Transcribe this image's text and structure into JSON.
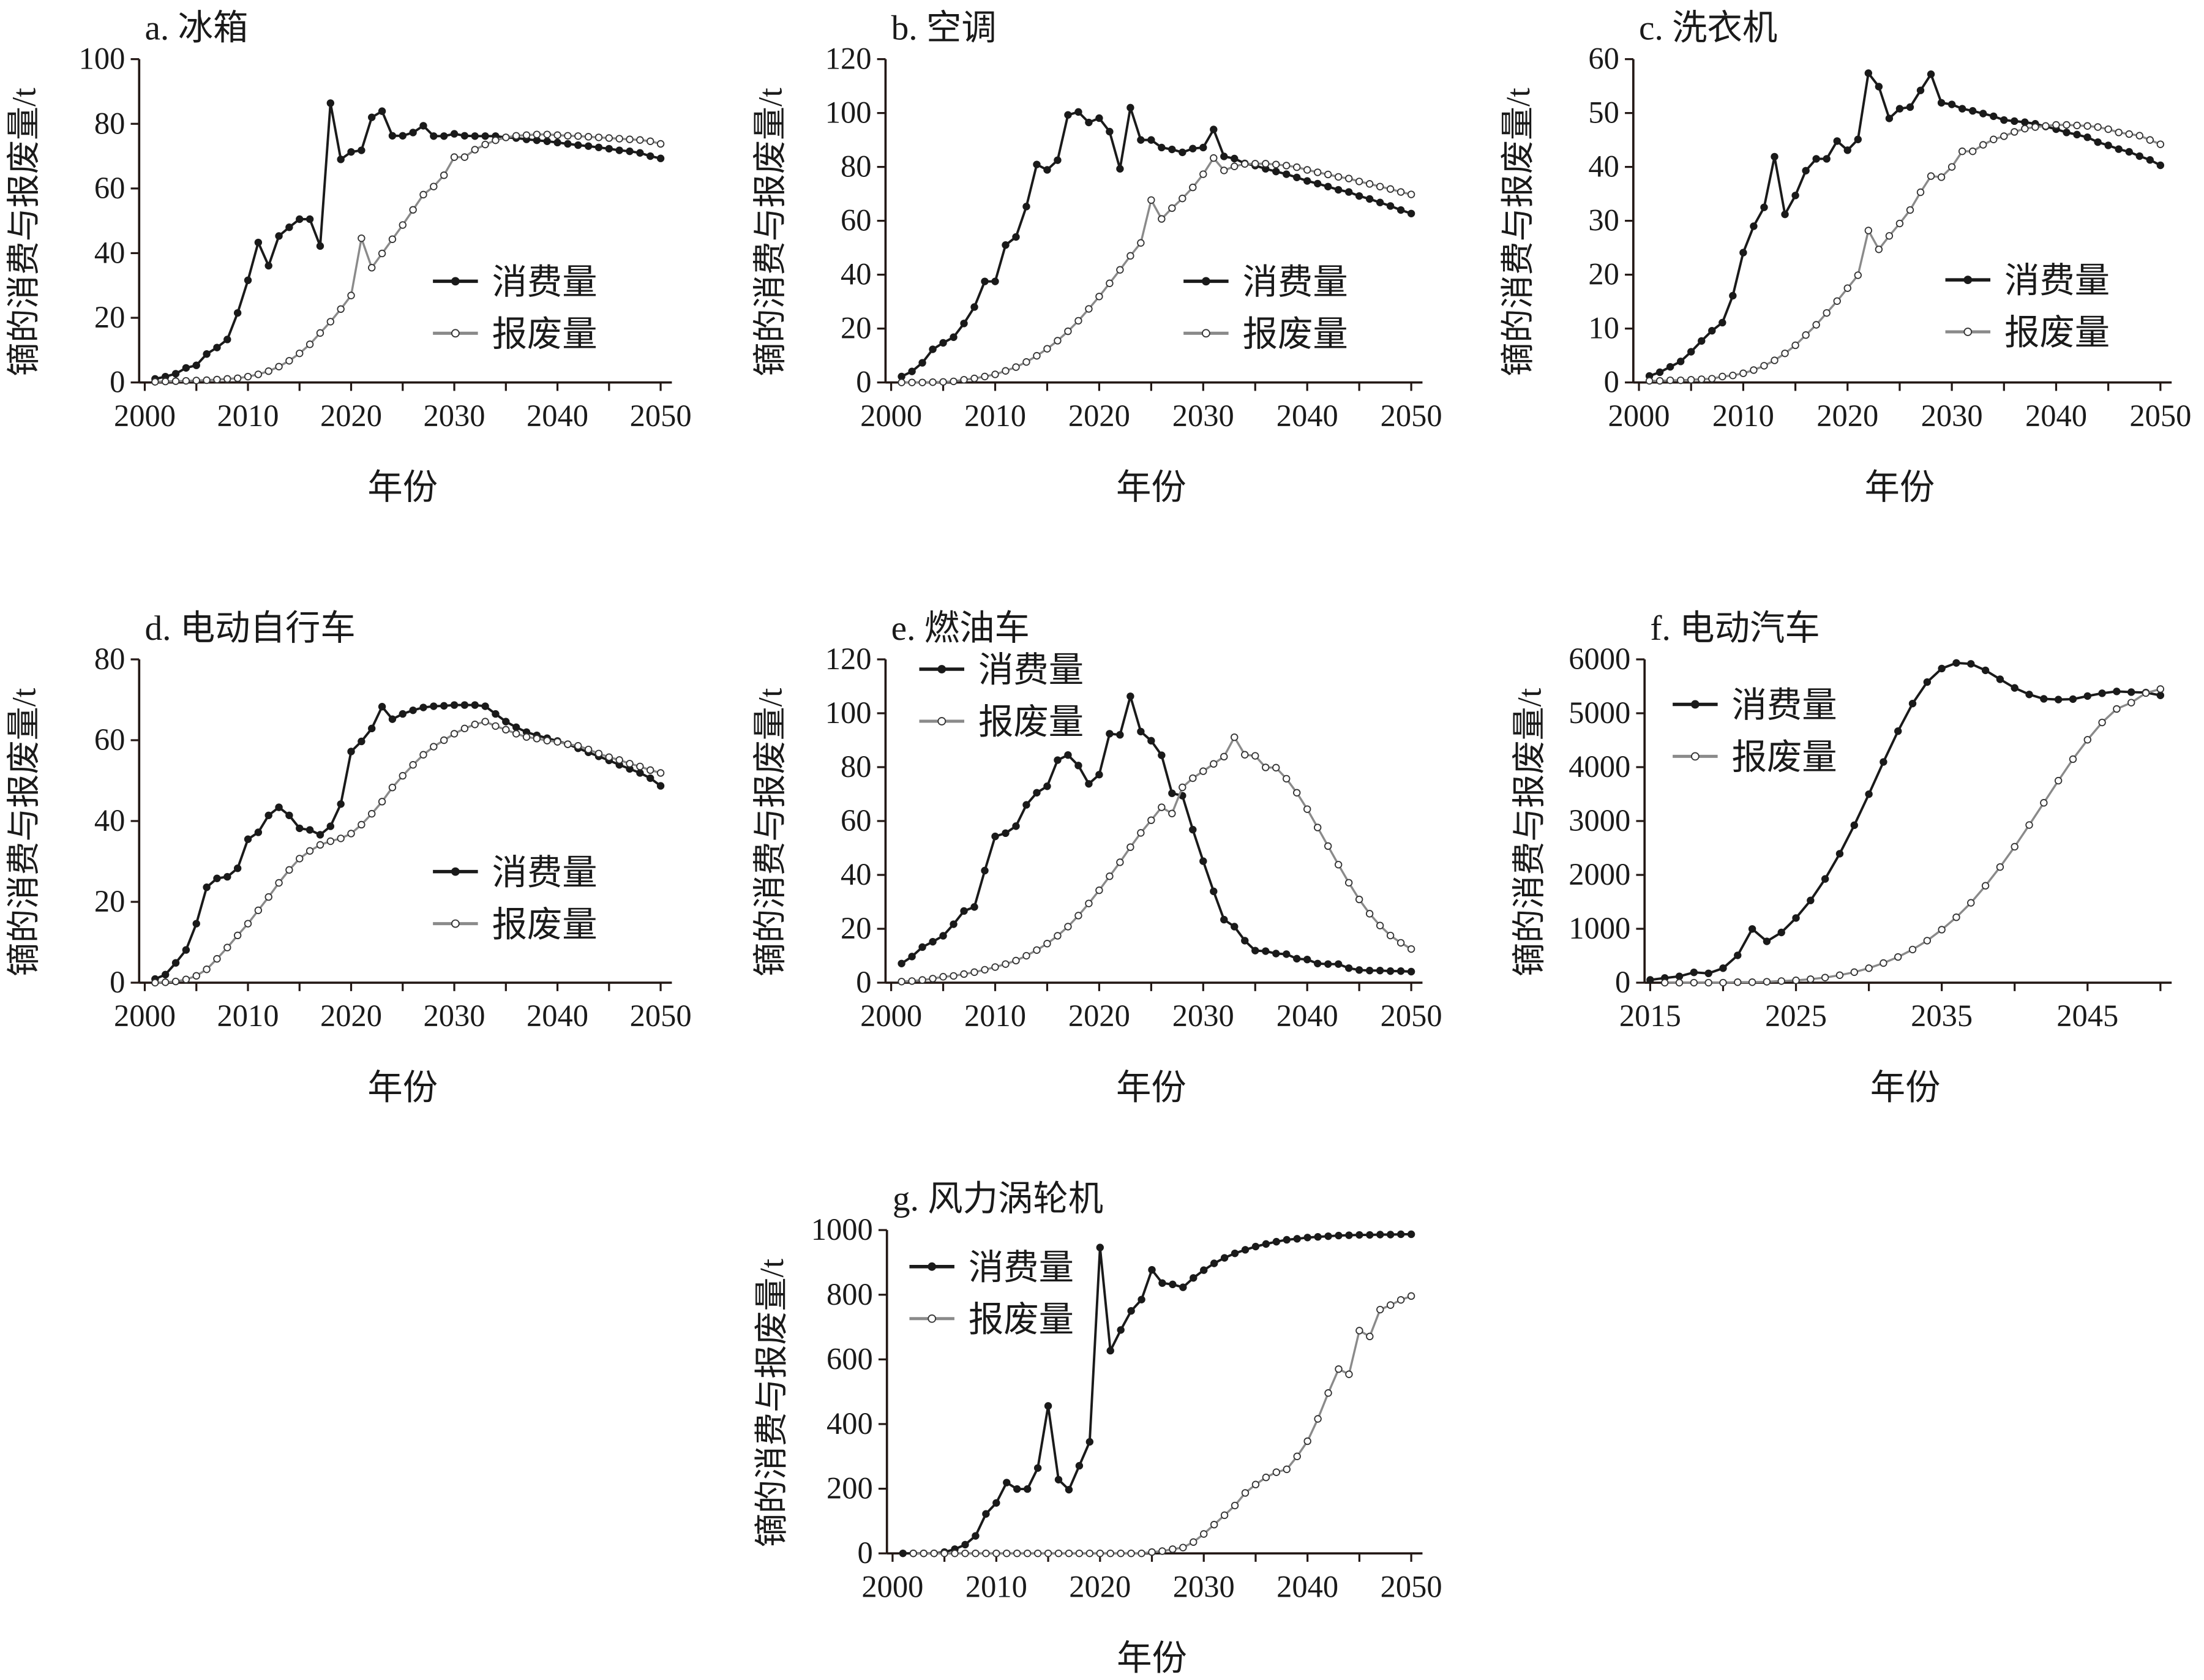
{
  "colors": {
    "consumption": "#1a1a1a",
    "scrap": "#8a8a8a",
    "axis": "#231815"
  },
  "chart_data": [
    {
      "id": "a",
      "type": "line",
      "title": "a. 冰箱",
      "xlabel": "年份",
      "ylabel": "镝的消费与报废量/t",
      "xlim": [
        2000,
        2050
      ],
      "ylim": [
        0,
        100
      ],
      "yticks": [
        0,
        20,
        40,
        60,
        80,
        100
      ],
      "xticks": [
        2000,
        2005,
        2010,
        2015,
        2020,
        2025,
        2030,
        2035,
        2040,
        2045,
        2050
      ],
      "xtick_labels": [
        2000,
        2010,
        2020,
        2030,
        2040,
        2050
      ],
      "legend": "right-middle",
      "series": [
        {
          "name": "消费量",
          "start": 2001,
          "values": [
            1.1,
            1.8,
            2.7,
            4.5,
            5.3,
            8.8,
            10.8,
            13.3,
            21.5,
            31.6,
            43.3,
            36.1,
            45.3,
            48,
            50.5,
            50.5,
            42.2,
            86.4,
            69,
            71.3,
            71.8,
            82,
            83.9,
            76.3,
            76.3,
            77.3,
            79.4,
            76.2,
            76.2,
            76.9,
            76.3,
            76.2,
            76.2,
            76.2,
            75.8,
            75.6,
            75.2,
            74.9,
            74.6,
            74.2,
            73.8,
            73.4,
            73.1,
            72.7,
            72.3,
            71.8,
            71.5,
            71,
            70,
            69.3
          ]
        },
        {
          "name": "报废量",
          "start": 2001,
          "values": [
            0.2,
            0.3,
            0.4,
            0.5,
            0.6,
            0.7,
            0.9,
            1.1,
            1.3,
            1.8,
            2.5,
            3.5,
            4.9,
            6.7,
            9,
            11.8,
            15.3,
            18.8,
            22.7,
            26.9,
            44.6,
            35.5,
            39.9,
            44.3,
            48.7,
            53.4,
            58.1,
            60.6,
            64.1,
            69.7,
            69.7,
            72,
            73.6,
            74.9,
            75.8,
            76.3,
            76.5,
            76.7,
            76.7,
            76.5,
            76.3,
            76.2,
            76,
            75.8,
            75.6,
            75.4,
            75.2,
            75,
            74.6,
            73.8
          ]
        }
      ]
    },
    {
      "id": "b",
      "type": "line",
      "title": "b. 空调",
      "xlabel": "年份",
      "ylabel": "镝的消费与报废量/t",
      "xlim": [
        2000,
        2050
      ],
      "ylim": [
        0,
        120
      ],
      "yticks": [
        0,
        20,
        40,
        60,
        80,
        100,
        120
      ],
      "xticks": [
        2000,
        2005,
        2010,
        2015,
        2020,
        2025,
        2030,
        2035,
        2040,
        2045,
        2050
      ],
      "xtick_labels": [
        2000,
        2010,
        2020,
        2030,
        2040,
        2050
      ],
      "legend": "right-middle",
      "series": [
        {
          "name": "消费量",
          "start": 2001,
          "values": [
            2.2,
            4.1,
            7.3,
            12.3,
            14.7,
            16.8,
            21.9,
            28,
            37.5,
            37.5,
            51,
            54,
            65.3,
            80.9,
            78.9,
            82.5,
            99.3,
            100.4,
            96.5,
            98.1,
            93.1,
            79.3,
            102,
            90,
            90,
            87.2,
            86.5,
            85.4,
            86.8,
            87.2,
            93.9,
            83.9,
            83.1,
            81.3,
            80.5,
            79.3,
            78.3,
            77.3,
            76.1,
            74.8,
            73.8,
            72.7,
            71.5,
            70.7,
            69.2,
            68.1,
            66.8,
            65.5,
            64,
            62.7
          ]
        },
        {
          "name": "报废量",
          "start": 2001,
          "values": [
            0,
            0,
            0,
            0.1,
            0.2,
            0.4,
            1,
            1.5,
            2.2,
            3,
            4.3,
            5.7,
            7.6,
            9.9,
            12.5,
            15.5,
            19,
            22.9,
            27.3,
            31.9,
            36.8,
            41.8,
            47,
            51.8,
            67.7,
            60.7,
            64.7,
            68.3,
            72.4,
            77.3,
            83.3,
            78.7,
            80.2,
            81.1,
            81.2,
            81.2,
            80.9,
            80.5,
            79.9,
            78.9,
            78,
            77.2,
            76.3,
            75.7,
            74.6,
            73.7,
            72.7,
            71.8,
            70.7,
            69.8
          ]
        }
      ]
    },
    {
      "id": "c",
      "type": "line",
      "title": "c. 洗衣机",
      "xlabel": "年份",
      "ylabel": "镝的消费与报废量/t",
      "xlim": [
        2000,
        2050
      ],
      "ylim": [
        0,
        60
      ],
      "yticks": [
        0,
        10,
        20,
        30,
        40,
        50,
        60
      ],
      "xticks": [
        2000,
        2005,
        2010,
        2015,
        2020,
        2025,
        2030,
        2035,
        2040,
        2045,
        2050
      ],
      "xtick_labels": [
        2000,
        2010,
        2020,
        2030,
        2040,
        2050
      ],
      "legend": "right-middle",
      "series": [
        {
          "name": "消费量",
          "start": 2001,
          "values": [
            1.2,
            1.9,
            2.9,
            3.9,
            5.7,
            7.7,
            9.6,
            11.1,
            16.1,
            24.1,
            29,
            32.5,
            41.9,
            31.2,
            34.7,
            39.3,
            41.5,
            41.5,
            44.8,
            43.1,
            45.1,
            57.4,
            54.9,
            49,
            50.8,
            51.1,
            54.2,
            57.2,
            51.9,
            51.6,
            50.8,
            50.4,
            49.9,
            49.4,
            48.7,
            48.5,
            48.3,
            48,
            47.5,
            47,
            46.4,
            46,
            45.5,
            44.6,
            44,
            43.3,
            42.8,
            42,
            41.3,
            40.3
          ]
        },
        {
          "name": "报废量",
          "start": 2001,
          "values": [
            0.3,
            0.3,
            0.4,
            0.4,
            0.5,
            0.6,
            0.7,
            1.1,
            1.3,
            1.7,
            2.3,
            3.1,
            4.1,
            5.4,
            6.9,
            8.8,
            10.7,
            12.9,
            15.1,
            17.5,
            19.9,
            28.2,
            24.7,
            27.2,
            29.5,
            32,
            35.3,
            38.3,
            38.1,
            40,
            42.9,
            42.9,
            44.1,
            45.1,
            45.7,
            46.5,
            47.1,
            47.4,
            47.6,
            47.8,
            47.8,
            47.7,
            47.6,
            47.4,
            47,
            46.4,
            46.1,
            45.8,
            45,
            44.2
          ]
        }
      ]
    },
    {
      "id": "d",
      "type": "line",
      "title": "d. 电动自行车",
      "xlabel": "年份",
      "ylabel": "镝的消费与报废量/t",
      "xlim": [
        2000,
        2050
      ],
      "ylim": [
        0,
        80
      ],
      "yticks": [
        0,
        20,
        40,
        60,
        80
      ],
      "xticks": [
        2000,
        2005,
        2010,
        2015,
        2020,
        2025,
        2030,
        2035,
        2040,
        2045,
        2050
      ],
      "xtick_labels": [
        2000,
        2010,
        2020,
        2030,
        2040,
        2050
      ],
      "legend": "right-lower",
      "series": [
        {
          "name": "消费量",
          "start": 2001,
          "values": [
            0.9,
            2,
            4.9,
            8.1,
            14.6,
            23.6,
            25.8,
            26.2,
            28.3,
            35.5,
            37.2,
            41.4,
            43.4,
            41.4,
            38.2,
            37.8,
            36.6,
            38.7,
            44.2,
            57.2,
            59.7,
            62.9,
            68.3,
            65.2,
            66.5,
            67.4,
            68.1,
            68.4,
            68.5,
            68.7,
            68.7,
            68.7,
            68.4,
            66.5,
            64.6,
            63.2,
            62,
            61.2,
            60.5,
            59.8,
            59,
            58,
            57,
            56,
            55,
            53.9,
            52.9,
            51.9,
            50.6,
            48.7
          ]
        },
        {
          "name": "报废量",
          "start": 2001,
          "values": [
            0,
            0.1,
            0.3,
            0.8,
            1.7,
            3.3,
            5.9,
            8.7,
            11.7,
            14.6,
            17.9,
            21.2,
            24.7,
            27.9,
            30.7,
            32.6,
            34.1,
            35,
            35.7,
            36.9,
            39.1,
            41.8,
            44.8,
            48.3,
            51.2,
            53.9,
            56.4,
            58.4,
            60,
            61.6,
            62.9,
            63.9,
            64.6,
            63.5,
            62.6,
            61.6,
            60.8,
            60.4,
            59.9,
            59.6,
            59,
            58.6,
            57.7,
            56.7,
            55.8,
            55.1,
            54.2,
            53.5,
            52.6,
            51.9
          ]
        }
      ]
    },
    {
      "id": "e",
      "type": "line",
      "title": "e. 燃油车",
      "xlabel": "年份",
      "ylabel": "镝的消费与报废量/t",
      "xlim": [
        2000,
        2050
      ],
      "ylim": [
        0,
        120
      ],
      "yticks": [
        0,
        20,
        40,
        60,
        80,
        100,
        120
      ],
      "xticks": [
        2000,
        2005,
        2010,
        2015,
        2020,
        2025,
        2030,
        2035,
        2040,
        2045,
        2050
      ],
      "xtick_labels": [
        2000,
        2010,
        2020,
        2030,
        2040,
        2050
      ],
      "legend": "top-left",
      "series": [
        {
          "name": "消费量",
          "start": 2001,
          "values": [
            7.1,
            9.7,
            13.2,
            15.2,
            17.4,
            21.7,
            26.6,
            28.1,
            41.6,
            54.3,
            55.5,
            58.1,
            66,
            70.5,
            72.9,
            82.6,
            84.5,
            80.6,
            73.8,
            77.2,
            92.4,
            92,
            106.3,
            93.2,
            89.8,
            84.4,
            70.3,
            69.4,
            56.8,
            45.1,
            33.9,
            23.4,
            20.8,
            15.6,
            11.9,
            11.7,
            10.8,
            10.6,
            8.9,
            8.6,
            7.1,
            6.9,
            6.9,
            5.4,
            4.7,
            4.5,
            4.5,
            4.3,
            4.3,
            4.1
          ]
        },
        {
          "name": "报废量",
          "start": 2001,
          "values": [
            0.4,
            0.6,
            1,
            1.5,
            2.2,
            2.5,
            3.2,
            3.9,
            4.8,
            5.8,
            6.9,
            8.2,
            10,
            12.1,
            14.5,
            17.4,
            20.8,
            24.9,
            29.4,
            34.3,
            39.5,
            44.7,
            50.3,
            55.6,
            60.3,
            65.1,
            62.8,
            72.5,
            75.9,
            78.5,
            81.2,
            83.9,
            91.1,
            84.6,
            84.2,
            79.9,
            79.8,
            75.7,
            70.5,
            64.4,
            57.6,
            50.7,
            43.8,
            37.1,
            30.9,
            25.6,
            21.2,
            17.5,
            14.8,
            12.5
          ]
        }
      ]
    },
    {
      "id": "f",
      "type": "line",
      "title": "f. 电动汽车",
      "xlabel": "年份",
      "ylabel": "镝的消费与报废量/t",
      "xlim": [
        2015,
        2050
      ],
      "ylim": [
        0,
        6000
      ],
      "yticks": [
        0,
        1000,
        2000,
        3000,
        4000,
        5000,
        6000
      ],
      "xticks": [
        2015,
        2020,
        2025,
        2030,
        2035,
        2040,
        2045,
        2050
      ],
      "xtick_labels": [
        2015,
        2025,
        2035,
        2045
      ],
      "legend": "top-left",
      "series": [
        {
          "name": "消费量",
          "start": 2015,
          "values": [
            52,
            87,
            117,
            191,
            173,
            269,
            507,
            997,
            767,
            932,
            1200,
            1526,
            1925,
            2393,
            2922,
            3498,
            4096,
            4668,
            5180,
            5579,
            5830,
            5934,
            5917,
            5796,
            5631,
            5470,
            5349,
            5267,
            5254,
            5262,
            5319,
            5371,
            5405,
            5392,
            5384,
            5332
          ]
        },
        {
          "name": "报废量",
          "start": 2016,
          "values": [
            0,
            0,
            0,
            0,
            0,
            9,
            9,
            17,
            30,
            43,
            65,
            95,
            139,
            195,
            269,
            364,
            477,
            615,
            780,
            984,
            1214,
            1482,
            1799,
            2146,
            2523,
            2926,
            3338,
            3749,
            4148,
            4508,
            4829,
            5080,
            5197,
            5375,
            5449
          ]
        }
      ]
    },
    {
      "id": "g",
      "type": "line",
      "title": "g. 风力涡轮机",
      "xlabel": "年份",
      "ylabel": "镝的消费与报废量/t",
      "xlim": [
        2000,
        2050
      ],
      "ylim": [
        0,
        1000
      ],
      "yticks": [
        0,
        200,
        400,
        600,
        800,
        1000
      ],
      "xticks": [
        2000,
        2005,
        2010,
        2015,
        2020,
        2025,
        2030,
        2035,
        2040,
        2045,
        2050
      ],
      "xtick_labels": [
        2000,
        2010,
        2020,
        2030,
        2040,
        2050
      ],
      "legend": "top-left",
      "series": [
        {
          "name": "消费量",
          "start": 2001,
          "values": [
            0,
            0,
            0,
            0,
            4,
            13,
            27,
            54,
            122,
            156,
            219,
            199,
            199,
            264,
            456,
            228,
            197,
            271,
            345,
            946,
            627,
            691,
            750,
            785,
            877,
            836,
            832,
            823,
            852,
            876,
            897,
            914,
            928,
            939,
            949,
            957,
            964,
            970,
            973,
            977,
            979,
            981,
            983,
            984,
            985,
            985,
            986,
            986,
            987,
            987
          ]
        },
        {
          "name": "报废量",
          "start": 2002,
          "values": [
            0,
            0,
            0,
            0,
            0,
            0,
            0,
            0,
            0,
            0,
            0,
            0,
            0,
            0,
            0,
            0,
            0,
            0,
            0,
            0,
            0,
            0,
            0,
            4,
            7,
            13,
            18,
            35,
            60,
            89,
            118,
            148,
            187,
            213,
            235,
            251,
            260,
            300,
            347,
            416,
            496,
            570,
            554,
            689,
            671,
            754,
            768,
            784,
            796
          ]
        }
      ]
    }
  ]
}
